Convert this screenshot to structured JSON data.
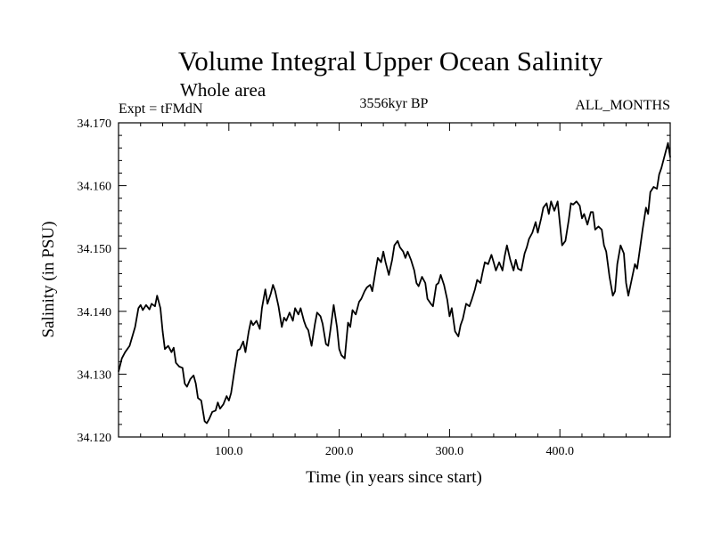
{
  "chart_data": {
    "type": "line",
    "title": "Volume Integral Upper Ocean Salinity",
    "subtitle": "Whole area",
    "left_label": "Expt = tFMdN",
    "center_label": "3556kyr BP",
    "right_label": "ALL_MONTHS",
    "xlabel": "Time (in years since start)",
    "ylabel": "Salinity (in PSU)",
    "xlim": [
      0,
      500
    ],
    "ylim": [
      34.12,
      34.17
    ],
    "x_ticks": [
      {
        "value": 100,
        "label": "100.0"
      },
      {
        "value": 200,
        "label": "200.0"
      },
      {
        "value": 300,
        "label": "300.0"
      },
      {
        "value": 400,
        "label": "400.0"
      }
    ],
    "y_ticks": [
      {
        "value": 34.12,
        "label": "34.120"
      },
      {
        "value": 34.13,
        "label": "34.130"
      },
      {
        "value": 34.14,
        "label": "34.140"
      },
      {
        "value": 34.15,
        "label": "34.150"
      },
      {
        "value": 34.16,
        "label": "34.160"
      },
      {
        "value": 34.17,
        "label": "34.170"
      }
    ],
    "series": [
      {
        "name": "salinity",
        "color": "#000000",
        "x": [
          0,
          3,
          6,
          10,
          15,
          18,
          20,
          22,
          25,
          28,
          30,
          33,
          35,
          38,
          40,
          42,
          45,
          48,
          50,
          52,
          55,
          58,
          60,
          62,
          65,
          68,
          70,
          72,
          75,
          78,
          80,
          82,
          85,
          88,
          90,
          92,
          95,
          98,
          100,
          102,
          105,
          108,
          110,
          113,
          115,
          118,
          120,
          122,
          125,
          128,
          130,
          133,
          135,
          138,
          140,
          142,
          145,
          148,
          150,
          152,
          155,
          158,
          160,
          163,
          165,
          168,
          170,
          172,
          175,
          178,
          180,
          183,
          185,
          188,
          190,
          192,
          195,
          198,
          200,
          202,
          205,
          208,
          210,
          212,
          215,
          218,
          220,
          223,
          225,
          228,
          230,
          233,
          235,
          238,
          240,
          242,
          245,
          248,
          250,
          253,
          255,
          258,
          260,
          262,
          265,
          268,
          270,
          272,
          275,
          278,
          280,
          283,
          285,
          288,
          290,
          292,
          295,
          298,
          300,
          302,
          305,
          308,
          310,
          312,
          315,
          318,
          320,
          323,
          325,
          328,
          330,
          332,
          335,
          338,
          340,
          342,
          345,
          348,
          350,
          352,
          355,
          358,
          360,
          362,
          365,
          368,
          370,
          372,
          375,
          378,
          380,
          383,
          385,
          388,
          390,
          392,
          395,
          398,
          400,
          402,
          405,
          408,
          410,
          412,
          415,
          418,
          420,
          422,
          425,
          428,
          430,
          432,
          435,
          438,
          440,
          442,
          445,
          448,
          450,
          452,
          455,
          458,
          460,
          462,
          465,
          468,
          470,
          472,
          475,
          478,
          480,
          482,
          485,
          488,
          490,
          492,
          495,
          498,
          500
        ],
        "values": [
          34.1304,
          34.1325,
          34.1335,
          34.1345,
          34.1375,
          34.1405,
          34.141,
          34.1402,
          34.141,
          34.1403,
          34.1412,
          34.1408,
          34.1425,
          34.1405,
          34.1368,
          34.134,
          34.1345,
          34.1335,
          34.1342,
          34.1318,
          34.1312,
          34.131,
          34.1285,
          34.128,
          34.1292,
          34.1298,
          34.1285,
          34.1262,
          34.1258,
          34.1225,
          34.1222,
          34.1228,
          34.124,
          34.1242,
          34.1255,
          34.1245,
          34.1252,
          34.1265,
          34.1258,
          34.127,
          34.1305,
          34.1338,
          34.134,
          34.1352,
          34.1335,
          34.1368,
          34.1385,
          34.1378,
          34.1385,
          34.1372,
          34.1405,
          34.1435,
          34.1412,
          34.1428,
          34.1442,
          34.1432,
          34.1408,
          34.1375,
          34.139,
          34.1385,
          34.1398,
          34.1385,
          34.1405,
          34.1395,
          34.1405,
          34.1385,
          34.1375,
          34.137,
          34.1345,
          34.138,
          34.1398,
          34.1392,
          34.138,
          34.1348,
          34.1345,
          34.137,
          34.141,
          34.1375,
          34.134,
          34.133,
          34.1325,
          34.1382,
          34.1375,
          34.1402,
          34.1395,
          34.1415,
          34.142,
          34.1432,
          34.1438,
          34.1442,
          34.1432,
          34.1465,
          34.1485,
          34.1478,
          34.1495,
          34.1478,
          34.1458,
          34.1482,
          34.1505,
          34.1512,
          34.1502,
          34.1495,
          34.1485,
          34.1495,
          34.1482,
          34.1465,
          34.1445,
          34.144,
          34.1455,
          34.1445,
          34.142,
          34.1412,
          34.1408,
          34.1442,
          34.1445,
          34.1458,
          34.1442,
          34.1418,
          34.1392,
          34.1405,
          34.1368,
          34.136,
          34.1378,
          34.1388,
          34.1412,
          34.1408,
          34.1418,
          34.1435,
          34.145,
          34.1445,
          34.1462,
          34.1478,
          34.1475,
          34.149,
          34.1478,
          34.1465,
          34.1478,
          34.1465,
          34.1488,
          34.1505,
          34.1482,
          34.1465,
          34.1482,
          34.1468,
          34.1465,
          34.1492,
          34.1502,
          34.1515,
          34.1525,
          34.1542,
          34.1525,
          34.1548,
          34.1565,
          34.1572,
          34.1555,
          34.1575,
          34.156,
          34.1575,
          34.154,
          34.1505,
          34.1512,
          34.1545,
          34.1572,
          34.157,
          34.1575,
          34.1568,
          34.1548,
          34.1555,
          34.1538,
          34.1558,
          34.1558,
          34.153,
          34.1535,
          34.153,
          34.1505,
          34.1495,
          34.1455,
          34.1425,
          34.1432,
          34.1475,
          34.1505,
          34.1492,
          34.1445,
          34.1425,
          34.145,
          34.1475,
          34.1468,
          34.1492,
          34.153,
          34.1565,
          34.1555,
          34.159,
          34.1598,
          34.1595,
          34.1618,
          34.1628,
          34.1648,
          34.1668,
          34.1645
        ]
      }
    ]
  }
}
